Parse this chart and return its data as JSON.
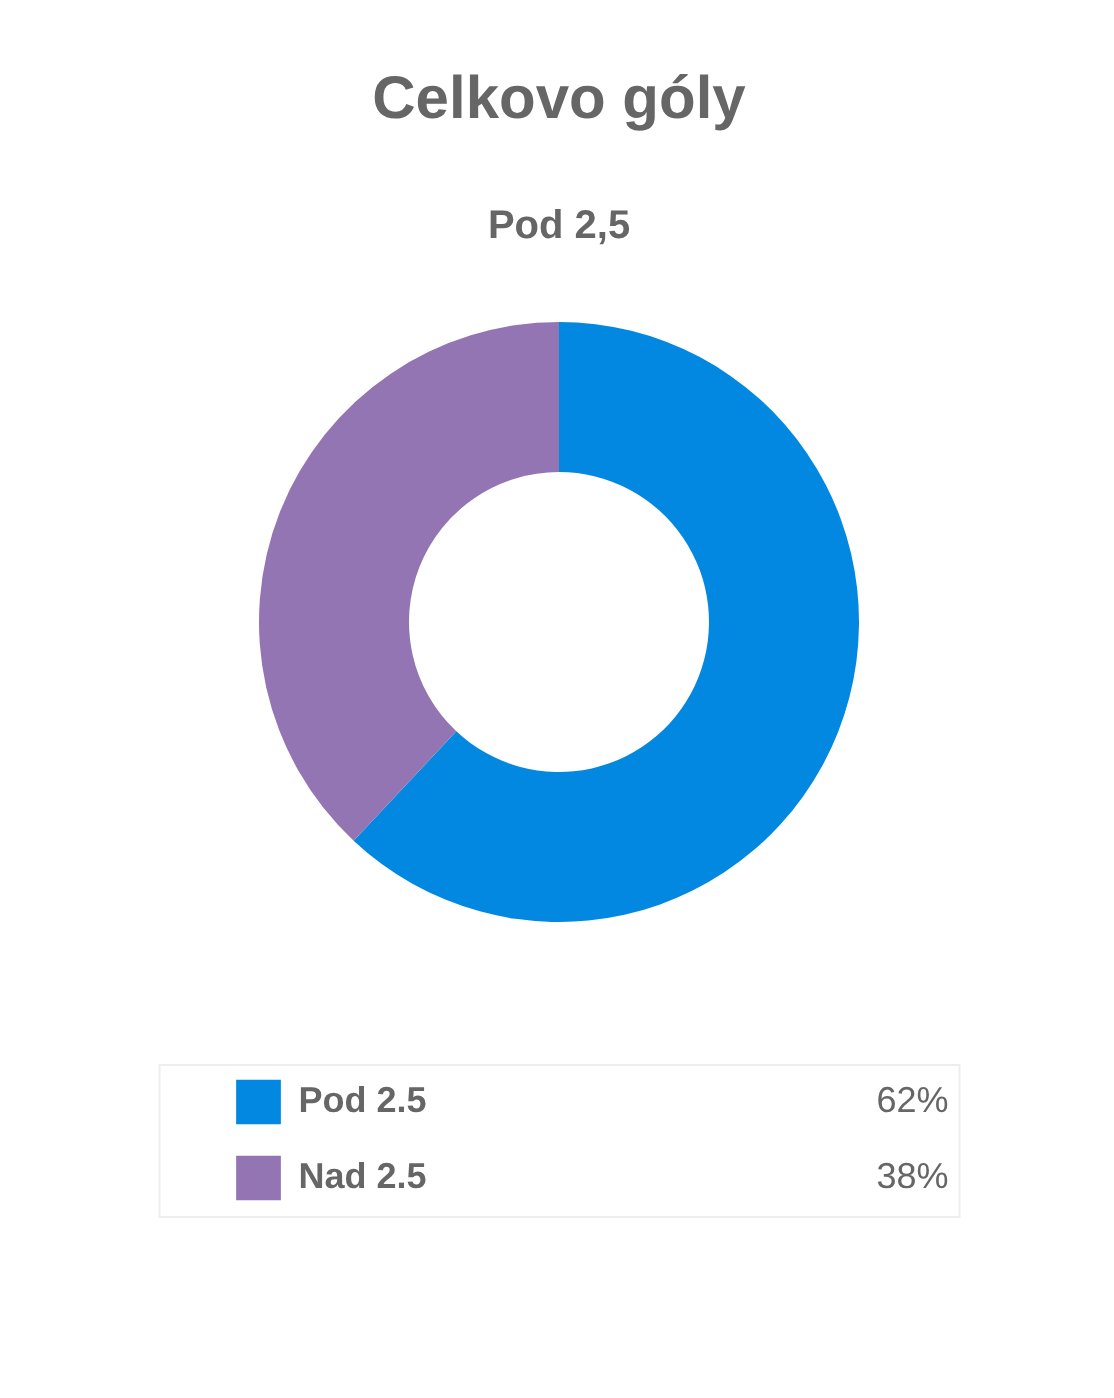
{
  "chart_data": {
    "type": "donut",
    "title": "Celkovo góly",
    "subtitle": "Pod 2,5",
    "categories": [
      "Pod 2.5",
      "Nad 2.5"
    ],
    "values": [
      62,
      38
    ],
    "colors": [
      "#0288e0",
      "#9475b3"
    ],
    "value_labels": [
      "62%",
      "38%"
    ],
    "legend": "bottom"
  }
}
